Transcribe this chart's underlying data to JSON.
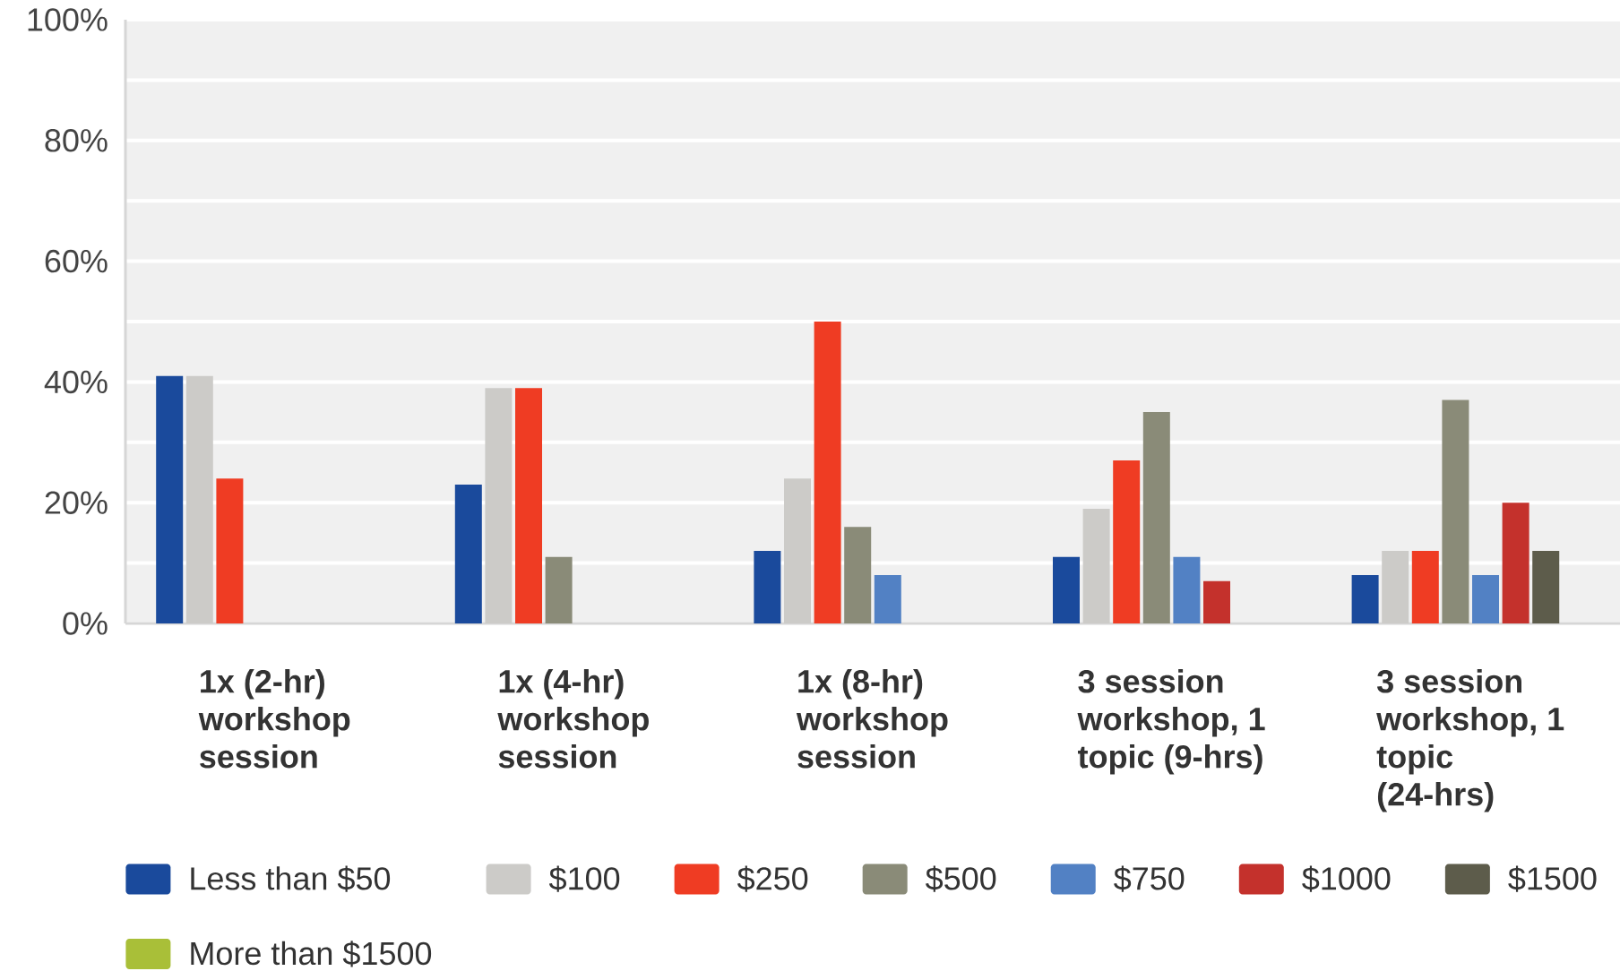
{
  "chart_data": {
    "type": "bar",
    "categories": [
      "1x (2-hr) workshop session",
      "1x (4-hr) workshop session",
      "1x (8-hr) workshop session",
      "3 session workshop, 1 topic (9-hrs)",
      "3 session workshop, 1 topic (24-hrs)"
    ],
    "series": [
      {
        "name": "Less than $50",
        "color": "#1a4a9c",
        "values": [
          41,
          23,
          12,
          11,
          8
        ]
      },
      {
        "name": "$100",
        "color": "#cccbc8",
        "values": [
          41,
          39,
          24,
          19,
          12
        ]
      },
      {
        "name": "$250",
        "color": "#ef3c23",
        "values": [
          24,
          39,
          50,
          27,
          12
        ]
      },
      {
        "name": "$500",
        "color": "#8a8b78",
        "values": [
          null,
          11,
          16,
          35,
          37
        ]
      },
      {
        "name": "$750",
        "color": "#5281c4",
        "values": [
          null,
          null,
          8,
          11,
          8
        ]
      },
      {
        "name": "$1000",
        "color": "#c4312c",
        "values": [
          null,
          null,
          null,
          7,
          20
        ]
      },
      {
        "name": "$1500",
        "color": "#5d5c4b",
        "values": [
          null,
          null,
          null,
          null,
          12
        ]
      },
      {
        "name": "More than $1500",
        "color": "#a9bf38",
        "values": [
          null,
          null,
          null,
          null,
          null
        ]
      }
    ],
    "ylim": [
      0,
      100
    ],
    "yticks": [
      {
        "value": 0,
        "label": "0%"
      },
      {
        "value": 10,
        "label": null
      },
      {
        "value": 20,
        "label": "20%"
      },
      {
        "value": 30,
        "label": null
      },
      {
        "value": 40,
        "label": "40%"
      },
      {
        "value": 50,
        "label": null
      },
      {
        "value": 60,
        "label": "60%"
      },
      {
        "value": 70,
        "label": null
      },
      {
        "value": 80,
        "label": "80%"
      },
      {
        "value": 90,
        "label": null
      },
      {
        "value": 100,
        "label": "100%"
      }
    ],
    "grid": "y",
    "legend": "bottom"
  }
}
